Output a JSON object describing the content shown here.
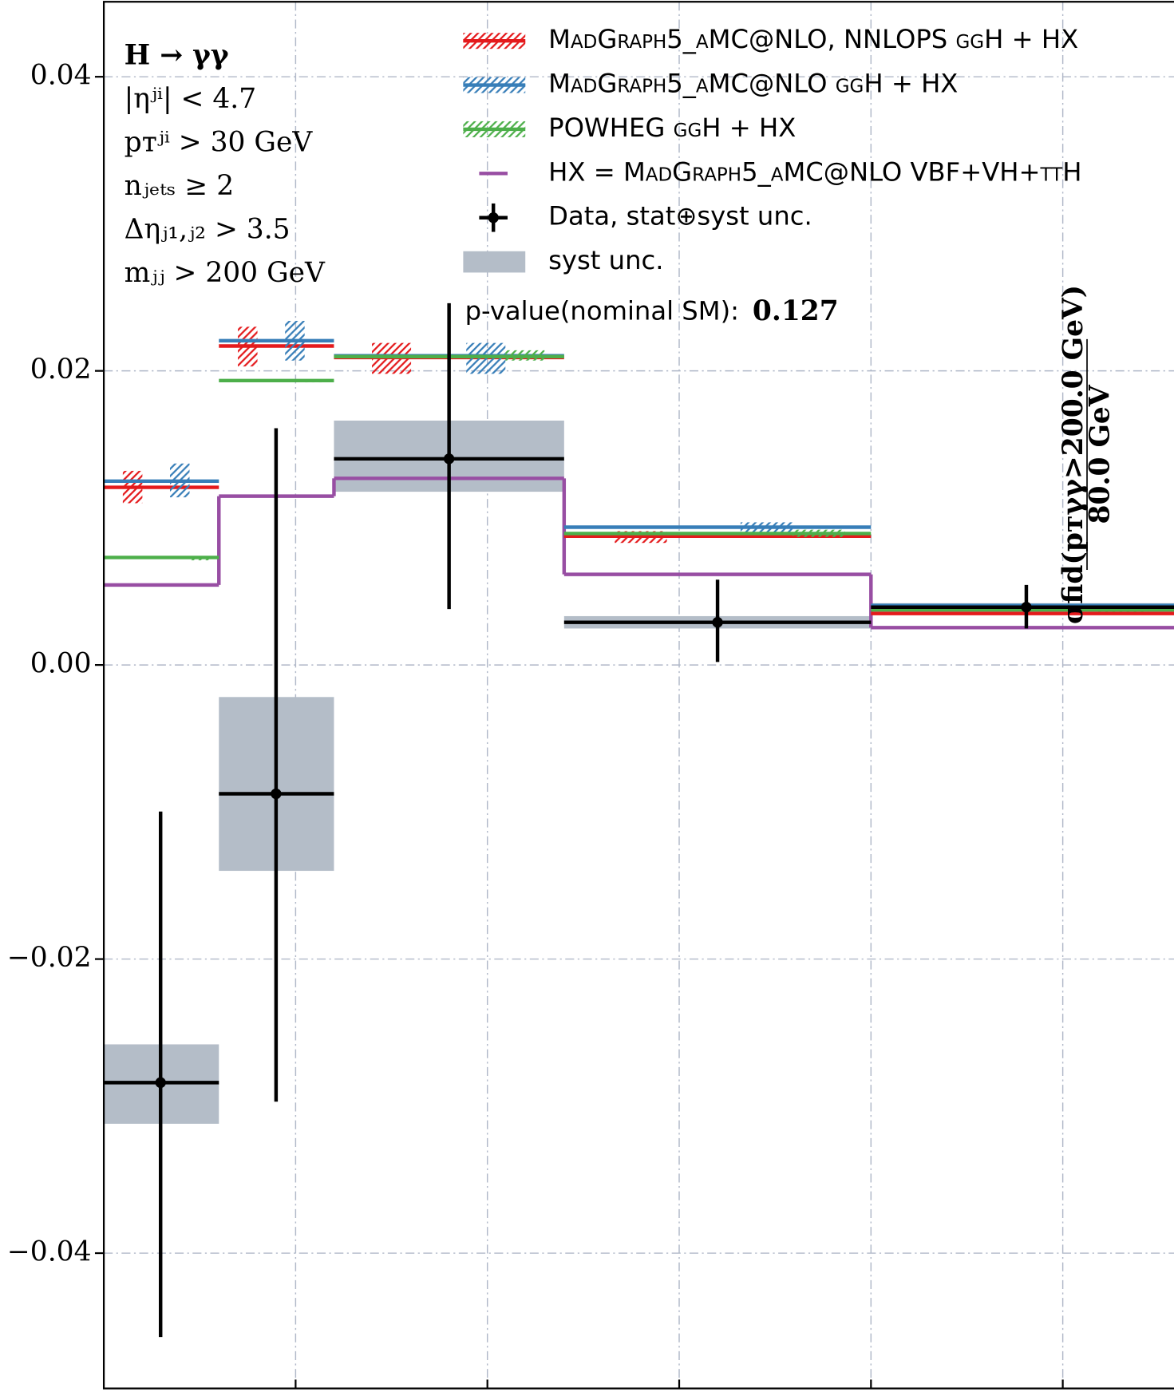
{
  "chart_data": {
    "type": "step",
    "xlim": [
      0,
      5.58
    ],
    "xticks": [
      1,
      2,
      3,
      4,
      5
    ],
    "ylim": [
      -0.0492,
      0.0451
    ],
    "yticks": [
      {
        "value": 0.04,
        "label": "0.04"
      },
      {
        "value": 0.02,
        "label": "0.02"
      },
      {
        "value": 0,
        "label": "0.00"
      },
      {
        "value": -0.02,
        "label": "−0.02"
      },
      {
        "value": -0.04,
        "label": "−0.04"
      }
    ],
    "grid": true,
    "legend": "upper right",
    "bins": [
      0,
      0.6,
      1.2,
      2.4,
      4.0,
      5.58
    ],
    "annotations": [
      "H → γγ",
      "|ηʲⁱ| < 4.7",
      "pᴛʲⁱ > 30 GeV",
      "nⱼₑₜₛ ≥ 2",
      "Δηⱼ₁,ⱼ₂ > 3.5",
      "mⱼⱼ > 200 GeV"
    ],
    "pvalue_label": "p-value(nominal SM):",
    "pvalue": 0.127,
    "side_label_num": "σfid(pᴛγγ>200.0 GeV)",
    "side_label_den": "80.0 GeV",
    "ggh_series": [
      {
        "name": "MadGraph5_aMC@NLO, NNLOPS ggH + HX",
        "color": "#e41a1c",
        "values": [
          0.01208,
          0.02169,
          0.02091,
          0.00876,
          0.0035
        ],
        "unc_low": [
          0.011,
          0.0203,
          0.0198,
          0.0083,
          0.0034
        ],
        "unc_high": [
          0.0132,
          0.023,
          0.0219,
          0.0091,
          0.0036
        ]
      },
      {
        "name": "MadGraph5_aMC@NLO ggH + HX",
        "color": "#377eb8",
        "values": [
          0.0125,
          0.02205,
          0.02103,
          0.00937,
          0.00405
        ],
        "unc_low": [
          0.0114,
          0.0207,
          0.0198,
          0.0089,
          0.004
        ],
        "unc_high": [
          0.0137,
          0.0234,
          0.0219,
          0.0097,
          0.0041
        ]
      },
      {
        "name": "POWHEG ggH + HX",
        "color": "#4daf4a",
        "values": [
          0.00731,
          0.01934,
          0.02097,
          0.00894,
          0.00375
        ],
        "unc_low": [
          0.0073,
          0.0193,
          0.0207,
          0.0087,
          0.0037
        ],
        "unc_high": [
          0.0073,
          0.0194,
          0.0214,
          0.0092,
          0.0038
        ]
      }
    ],
    "hx_series": {
      "name": "HX = MadGraph5_aMC@NLO VBF+VH+ttH",
      "color": "#984ea3",
      "values": [
        0.00544,
        0.01148,
        0.01269,
        0.00616,
        0.00254
      ]
    },
    "data": {
      "name": "Data, stat⊕syst unc.",
      "color": "#000000",
      "x": [
        0.296,
        0.898,
        1.8,
        3.2,
        4.81
      ],
      "values": [
        -0.0284,
        -0.00876,
        0.01402,
        0.0029,
        0.00393
      ],
      "err_low": [
        -0.0457,
        -0.0297,
        0.0038,
        0.0002,
        0.00248
      ],
      "err_high": [
        -0.00997,
        0.0161,
        0.0246,
        0.0058,
        0.00544
      ],
      "syst_low": [
        -0.0312,
        -0.014,
        0.01178,
        0.00248,
        0.0036
      ],
      "syst_high": [
        -0.0258,
        -0.00218,
        0.01662,
        0.00332,
        0.0042
      ]
    },
    "syst": {
      "name": "syst unc.",
      "color": "#b4bdc8"
    }
  }
}
